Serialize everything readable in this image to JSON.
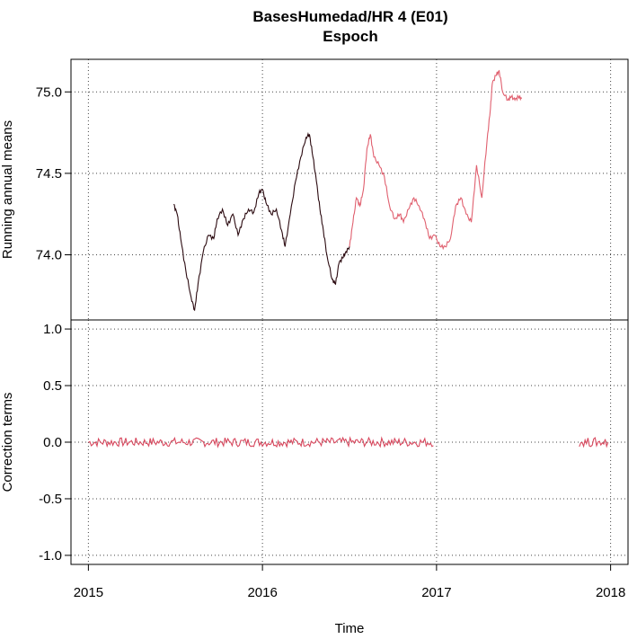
{
  "chart_data": {
    "type": "line",
    "title": "BasesHumedad/HR   4 (E01)",
    "subtitle": "Espoch",
    "xlabel": "Time",
    "x_ticks": [
      "2015",
      "2016",
      "2017",
      "2018"
    ],
    "xlim": [
      2014.9,
      2018.1
    ],
    "panels": [
      {
        "ylabel": "Running annual means",
        "ylim": [
          73.6,
          75.2
        ],
        "y_ticks": [
          "74.0",
          "74.5",
          "75.0"
        ],
        "y_tick_values": [
          74.0,
          74.5,
          75.0
        ],
        "grid": true,
        "series": [
          {
            "color": "#2b0a10",
            "x": [
              2015.49,
              2015.51,
              2015.53,
              2015.56,
              2015.59,
              2015.61,
              2015.63,
              2015.66,
              2015.69,
              2015.72,
              2015.74,
              2015.77,
              2015.8,
              2015.83,
              2015.86,
              2015.89,
              2015.92,
              2015.95,
              2015.98,
              2016.0,
              2016.02,
              2016.05,
              2016.08,
              2016.11,
              2016.13,
              2016.16,
              2016.19,
              2016.22,
              2016.25,
              2016.27,
              2016.29,
              2016.31,
              2016.33,
              2016.35,
              2016.37,
              2016.4,
              2016.42,
              2016.44,
              2016.46,
              2016.48,
              2016.5
            ],
            "y": [
              74.31,
              74.25,
              74.1,
              73.9,
              73.74,
              73.66,
              73.82,
              74.02,
              74.12,
              74.1,
              74.22,
              74.28,
              74.18,
              74.25,
              74.12,
              74.22,
              74.28,
              74.26,
              74.38,
              74.4,
              74.32,
              74.25,
              74.28,
              74.15,
              74.05,
              74.25,
              74.45,
              74.6,
              74.72,
              74.74,
              74.6,
              74.45,
              74.28,
              74.15,
              74.0,
              73.85,
              73.82,
              73.95,
              73.98,
              74.02,
              74.05
            ]
          },
          {
            "color": "#e0606f",
            "x": [
              2016.5,
              2016.52,
              2016.54,
              2016.56,
              2016.58,
              2016.6,
              2016.62,
              2016.64,
              2016.67,
              2016.7,
              2016.73,
              2016.76,
              2016.79,
              2016.81,
              2016.84,
              2016.87,
              2016.9,
              2016.93,
              2016.96,
              2016.99,
              2017.02,
              2017.05,
              2017.08,
              2017.11,
              2017.14,
              2017.17,
              2017.2,
              2017.23,
              2017.26,
              2017.29,
              2017.31,
              2017.32,
              2017.34,
              2017.36,
              2017.38,
              2017.41,
              2017.43,
              2017.45,
              2017.47,
              2017.49
            ],
            "y": [
              74.05,
              74.2,
              74.35,
              74.3,
              74.4,
              74.65,
              74.74,
              74.6,
              74.55,
              74.48,
              74.3,
              74.22,
              74.25,
              74.2,
              74.28,
              74.35,
              74.3,
              74.22,
              74.1,
              74.12,
              74.05,
              74.05,
              74.1,
              74.3,
              74.35,
              74.25,
              74.2,
              74.55,
              74.35,
              74.7,
              74.9,
              75.05,
              75.1,
              75.13,
              75.0,
              74.95,
              74.97,
              74.95,
              74.97,
              74.96
            ]
          }
        ]
      },
      {
        "ylabel": "Correction terms",
        "ylim": [
          -1.08,
          1.08
        ],
        "y_ticks": [
          "-1.0",
          "-0.5",
          "0.0",
          "0.5",
          "1.0"
        ],
        "y_tick_values": [
          -1.0,
          -0.5,
          0.0,
          0.5,
          1.0
        ],
        "grid": true,
        "series": [
          {
            "color": "#d8485e",
            "x_range": [
              2015.0,
              2016.99
            ],
            "level": 0.0,
            "noise": 0.04
          },
          {
            "color": "#d8485e",
            "x_range": [
              2017.82,
              2017.99
            ],
            "level": 0.0,
            "noise": 0.04
          }
        ]
      }
    ]
  }
}
